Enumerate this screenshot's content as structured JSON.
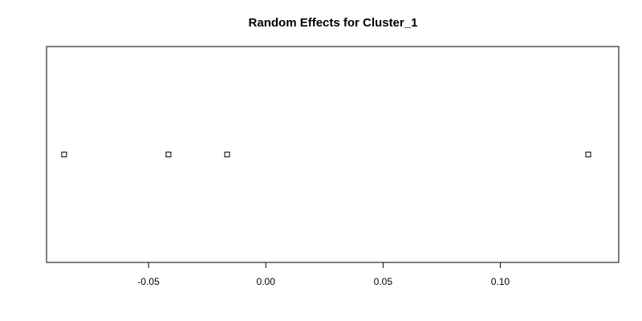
{
  "chart_data": {
    "type": "scatter",
    "title": "Random Effects for Cluster_1",
    "xlabel": "",
    "ylabel": "",
    "x": [
      -0.086,
      -0.0415,
      -0.0165,
      0.1375
    ],
    "xlim": [
      -0.0935,
      0.1505
    ],
    "xticks": [
      -0.05,
      0.0,
      0.05,
      0.1
    ],
    "xtick_labels": [
      "-0.05",
      "0.00",
      "0.05",
      "0.10"
    ],
    "marker": "open-square",
    "grid": false,
    "legend": "none",
    "colors": {
      "marker": "#000000",
      "axis": "#000000",
      "background": "#ffffff"
    }
  }
}
